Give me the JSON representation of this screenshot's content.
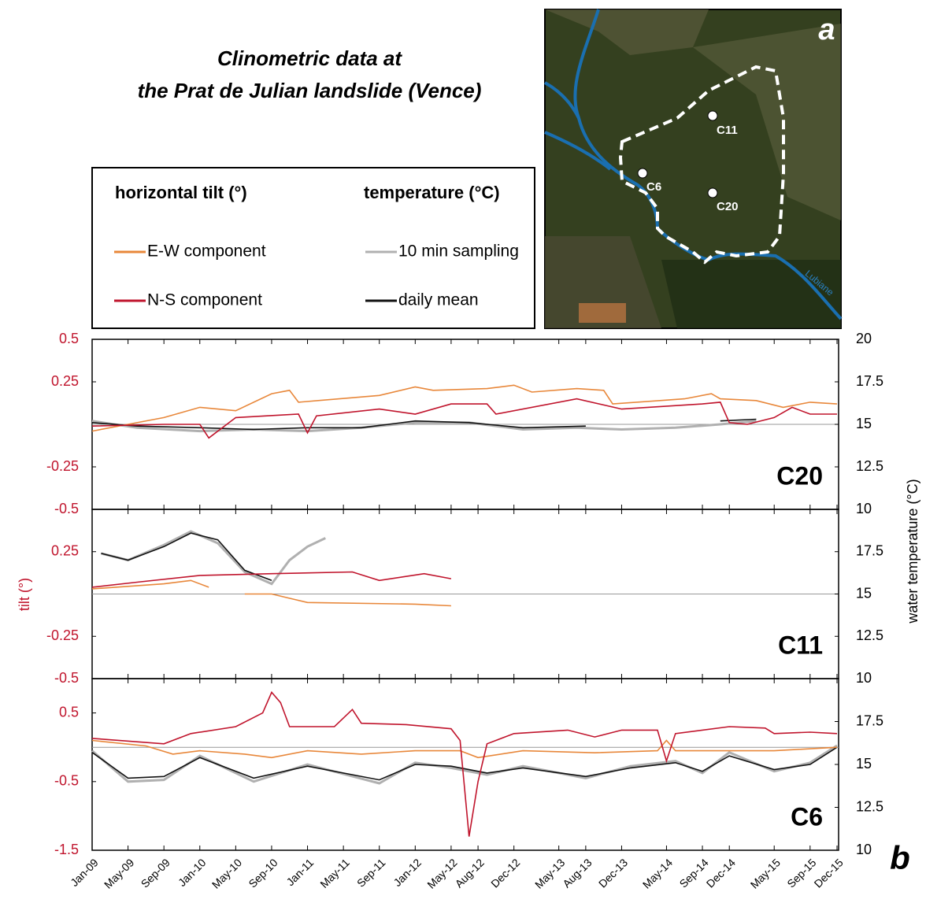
{
  "chart_data": {
    "type": "line",
    "title": [
      "Clinometric data at",
      "the Prat de Julian landslide (Vence)"
    ],
    "legend_titles": [
      "horizontal tilt (°)",
      "temperature (°C)"
    ],
    "ylabel": "tilt (°)",
    "y2label": "water temperature (°C)",
    "xlim": [
      "2009-01",
      "2015-12"
    ],
    "xticks": [
      {
        "value": "2009-01",
        "label": "Jan-09"
      },
      {
        "value": "2009-05",
        "label": "May-09"
      },
      {
        "value": "2009-09",
        "label": "Sep-09"
      },
      {
        "value": "2010-01",
        "label": "Jan-10"
      },
      {
        "value": "2010-05",
        "label": "May-10"
      },
      {
        "value": "2010-09",
        "label": "Sep-10"
      },
      {
        "value": "2011-01",
        "label": "Jan-11"
      },
      {
        "value": "2011-05",
        "label": "May-11"
      },
      {
        "value": "2011-09",
        "label": "Sep-11"
      },
      {
        "value": "2012-01",
        "label": "Jan-12"
      },
      {
        "value": "2012-05",
        "label": "May-12"
      },
      {
        "value": "2012-08",
        "label": "Aug-12"
      },
      {
        "value": "2012-12",
        "label": "Dec-12"
      },
      {
        "value": "2013-05",
        "label": "May-13"
      },
      {
        "value": "2013-08",
        "label": "Aug-13"
      },
      {
        "value": "2013-12",
        "label": "Dec-13"
      },
      {
        "value": "2014-05",
        "label": "May-14"
      },
      {
        "value": "2014-09",
        "label": "Sep-14"
      },
      {
        "value": "2014-12",
        "label": "Dec-14"
      },
      {
        "value": "2015-05",
        "label": "May-15"
      },
      {
        "value": "2015-09",
        "label": "Sep-15"
      },
      {
        "value": "2015-12",
        "label": "Dec-15"
      }
    ],
    "hline": 0,
    "series": [
      {
        "name": "E-W component",
        "color": "#e8873a"
      },
      {
        "name": "N-S component",
        "color": "#c0142c"
      },
      {
        "name": "10 min sampling",
        "color": "#b0b0b0",
        "axis": "y2"
      },
      {
        "name": "daily mean",
        "color": "#111111",
        "axis": "y2"
      }
    ],
    "panels": [
      {
        "label": "C20",
        "ylim": [
          -0.5,
          0.5
        ],
        "yticks": [
          -0.5,
          -0.25,
          0.25,
          0.5
        ],
        "y2lim": [
          10,
          20
        ],
        "y2ticks": [
          10,
          12.5,
          15,
          17.5,
          20
        ],
        "series": [
          {
            "x": [
              "2009-01",
              "2009-05",
              "2009-09",
              "2010-01",
              "2010-05",
              "2010-09",
              "2010-11",
              "2010-12",
              "2011-09",
              "2012-01",
              "2012-03",
              "2012-09",
              "2012-12",
              "2013-02",
              "2013-07",
              "2013-10",
              "2013-11",
              "2014-07",
              "2014-10",
              "2014-11",
              "2015-03",
              "2015-06",
              "2015-09",
              "2015-12"
            ],
            "values": [
              -0.04,
              0.0,
              0.04,
              0.1,
              0.08,
              0.18,
              0.2,
              0.13,
              0.17,
              0.22,
              0.2,
              0.21,
              0.23,
              0.19,
              0.21,
              0.2,
              0.12,
              0.15,
              0.18,
              0.15,
              0.14,
              0.1,
              0.13,
              0.12
            ]
          },
          {
            "x": [
              "2009-01",
              "2009-09",
              "2010-01",
              "2010-02",
              "2010-05",
              "2010-12",
              "2011-01",
              "2011-02",
              "2011-09",
              "2012-01",
              "2012-05",
              "2012-09",
              "2012-10",
              "2013-07",
              "2013-12",
              "2014-09",
              "2014-11",
              "2014-12",
              "2015-02",
              "2015-05",
              "2015-07",
              "2015-09",
              "2015-12"
            ],
            "values": [
              -0.01,
              0.0,
              0.0,
              -0.08,
              0.04,
              0.06,
              -0.05,
              0.05,
              0.09,
              0.06,
              0.12,
              0.12,
              0.06,
              0.15,
              0.09,
              0.12,
              0.13,
              0.01,
              0.0,
              0.04,
              0.1,
              0.06,
              0.06
            ]
          },
          {
            "x": [
              "2009-01",
              "2009-06",
              "2010-01",
              "2010-07",
              "2011-01",
              "2011-07",
              "2012-01",
              "2012-07",
              "2013-01",
              "2013-07",
              "2013-12",
              "2014-06",
              "2014-11",
              "2015-03"
            ],
            "values": [
              15.2,
              14.8,
              14.6,
              14.7,
              14.6,
              14.8,
              15.1,
              15.1,
              14.7,
              14.8,
              14.7,
              14.8,
              15.0,
              15.2
            ]
          },
          {
            "x": [
              "2009-01",
              "2009-06",
              "2010-01",
              "2010-07",
              "2011-01",
              "2011-07",
              "2012-01",
              "2012-07",
              "2013-01",
              "2013-08",
              "2013-09",
              "2014-10",
              "2014-11",
              "2015-03"
            ],
            "values": [
              15.1,
              14.9,
              14.8,
              14.7,
              14.8,
              14.8,
              15.2,
              15.1,
              14.8,
              14.9,
              null,
              null,
              15.2,
              15.3
            ]
          }
        ]
      },
      {
        "label": "C11",
        "ylim": [
          -0.5,
          0.5
        ],
        "yticks": [
          -0.5,
          -0.25,
          0.25
        ],
        "y2lim": [
          10,
          20
        ],
        "y2ticks": [
          10,
          12.5,
          15,
          17.5
        ],
        "series": [
          {
            "x": [
              "2009-01",
              "2009-09",
              "2009-12",
              "2010-02",
              "2010-04",
              "2010-06",
              "2010-09",
              "2011-01",
              "2012-01",
              "2012-05"
            ],
            "values": [
              0.03,
              0.06,
              0.08,
              0.04,
              null,
              0.0,
              0.0,
              -0.05,
              -0.06,
              -0.07
            ]
          },
          {
            "x": [
              "2009-01",
              "2009-06",
              "2010-01",
              "2010-09",
              "2011-06",
              "2011-09",
              "2012-02",
              "2012-05"
            ],
            "values": [
              0.04,
              0.07,
              0.11,
              0.12,
              0.13,
              0.08,
              0.12,
              0.09
            ]
          },
          {
            "x": [
              "2009-02",
              "2009-05",
              "2009-09",
              "2009-12",
              "2010-03",
              "2010-06",
              "2010-09",
              "2010-11",
              "2011-01",
              "2011-03"
            ],
            "values": [
              17.4,
              17.0,
              17.9,
              18.7,
              18.0,
              16.3,
              15.6,
              17.0,
              17.8,
              18.3
            ]
          },
          {
            "x": [
              "2009-02",
              "2009-05",
              "2009-09",
              "2009-12",
              "2010-03",
              "2010-06",
              "2010-09"
            ],
            "values": [
              17.4,
              17.0,
              17.8,
              18.6,
              18.2,
              16.4,
              15.8
            ]
          }
        ]
      },
      {
        "label": "C6",
        "ylim": [
          -1.5,
          1
        ],
        "yticks": [
          -1.5,
          -0.5,
          0.5
        ],
        "y2lim": [
          10,
          20
        ],
        "y2ticks": [
          10,
          12.5,
          15,
          17.5
        ],
        "series": [
          {
            "x": [
              "2009-01",
              "2009-07",
              "2009-10",
              "2010-01",
              "2010-06",
              "2010-09",
              "2011-01",
              "2011-07",
              "2012-01",
              "2012-06",
              "2012-08",
              "2013-01",
              "2013-09",
              "2014-04",
              "2014-05",
              "2014-06",
              "2014-12",
              "2015-05",
              "2015-12"
            ],
            "values": [
              0.1,
              0.02,
              -0.1,
              -0.05,
              -0.1,
              -0.15,
              -0.05,
              -0.1,
              -0.05,
              -0.05,
              -0.15,
              -0.05,
              -0.08,
              -0.05,
              0.1,
              -0.05,
              -0.05,
              -0.05,
              0.0
            ]
          },
          {
            "x": [
              "2009-01",
              "2009-09",
              "2009-12",
              "2010-05",
              "2010-08",
              "2010-09",
              "2010-10",
              "2010-11",
              "2011-04",
              "2011-06",
              "2011-07",
              "2011-12",
              "2012-05",
              "2012-06",
              "2012-07",
              "2012-08",
              "2012-09",
              "2012-12",
              "2013-06",
              "2013-09",
              "2013-12",
              "2014-04",
              "2014-05",
              "2014-06",
              "2014-12",
              "2015-04",
              "2015-05",
              "2015-09",
              "2015-12"
            ],
            "values": [
              0.13,
              0.05,
              0.2,
              0.3,
              0.5,
              0.8,
              0.65,
              0.3,
              0.3,
              0.55,
              0.35,
              0.33,
              0.27,
              0.1,
              -1.3,
              -0.5,
              0.05,
              0.2,
              0.25,
              0.15,
              0.25,
              0.25,
              -0.2,
              0.2,
              0.3,
              0.28,
              0.2,
              0.22,
              0.2
            ]
          },
          {
            "x": [
              "2009-01",
              "2009-05",
              "2009-09",
              "2010-01",
              "2010-07",
              "2011-01",
              "2011-09",
              "2012-01",
              "2012-05",
              "2012-09",
              "2013-01",
              "2013-08",
              "2014-01",
              "2014-06",
              "2014-09",
              "2014-12",
              "2015-05",
              "2015-09",
              "2015-12"
            ],
            "values": [
              15.8,
              14.0,
              14.1,
              15.5,
              14.0,
              15.0,
              13.9,
              15.1,
              14.8,
              14.4,
              14.9,
              14.2,
              14.9,
              15.2,
              14.5,
              15.7,
              14.6,
              15.1,
              16.1
            ]
          },
          {
            "x": [
              "2009-01",
              "2009-05",
              "2009-09",
              "2010-01",
              "2010-07",
              "2011-01",
              "2011-09",
              "2012-01",
              "2012-05",
              "2012-09",
              "2013-01",
              "2013-08",
              "2014-01",
              "2014-06",
              "2014-09",
              "2014-12",
              "2015-05",
              "2015-09",
              "2015-12"
            ],
            "values": [
              15.7,
              14.2,
              14.3,
              15.4,
              14.2,
              14.9,
              14.1,
              15.0,
              14.9,
              14.5,
              14.8,
              14.3,
              14.8,
              15.1,
              14.6,
              15.5,
              14.7,
              15.0,
              16.0
            ]
          }
        ]
      }
    ]
  },
  "map": {
    "label": "a",
    "sites": [
      "C11",
      "C6",
      "C20"
    ],
    "river": "Lubiane"
  },
  "figure_label": "b"
}
